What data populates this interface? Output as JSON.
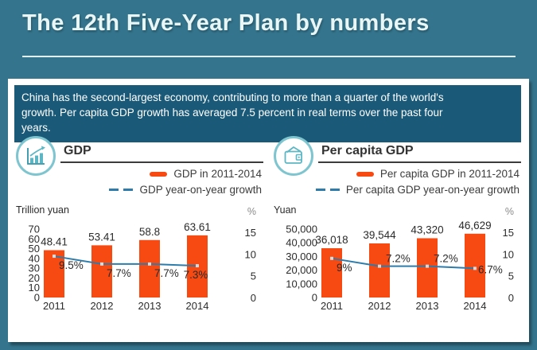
{
  "title": "The 12th Five-Year Plan by numbers",
  "intro": "China has the second-largest economy, contributing to more than a quarter of the world's growth. Per capita GDP growth has averaged 7.5 percent in real terms over the past four years.",
  "colors": {
    "background": "#34748c",
    "title_text": "#e9f6f6",
    "title_rule": "#e2eff1",
    "panel": "#ffffff",
    "intro_box": "#1a5a78",
    "bar": "#f64a12",
    "line": "#2d7cab",
    "marker": "#d9d9d9",
    "icon_circle": "#7fc5d0",
    "icon_glyph": "#5cb6c4",
    "rule_dark": "#3b3b3b",
    "text_dark": "#2b2b2b",
    "text_gray": "#8a8a8a"
  },
  "sections": [
    {
      "heading": "GDP",
      "icon": "growth-chart",
      "legend_bar": "GDP in 2011-2014",
      "legend_line": "GDP year-on-year growth"
    },
    {
      "heading": "Per capita GDP",
      "icon": "wallet",
      "legend_bar": "Per capita GDP in 2011-2014",
      "legend_line": "Per capita GDP year-on-year growth"
    }
  ],
  "chart_data": [
    {
      "type": "bar",
      "title": "GDP",
      "categories": [
        "2011",
        "2012",
        "2013",
        "2014"
      ],
      "series": [
        {
          "name": "GDP in 2011-2014",
          "type": "bar",
          "axis": "left",
          "values": [
            48.41,
            53.41,
            58.8,
            63.61
          ],
          "labels": [
            "48.41",
            "53.41",
            "58.8",
            "63.61"
          ]
        },
        {
          "name": "GDP year-on-year growth",
          "type": "line",
          "axis": "right",
          "values": [
            9.5,
            7.7,
            7.7,
            7.3
          ],
          "labels": [
            "9.5%",
            "7.7%",
            "7.7%",
            "7.3%"
          ],
          "label_placement": [
            "below-right",
            "below-right",
            "below-right",
            "below-center"
          ]
        }
      ],
      "left_axis": {
        "label": "Trillion yuan",
        "ticks": [
          "70",
          "60",
          "50",
          "40",
          "30",
          "20",
          "10",
          "0"
        ],
        "max": 70,
        "width": 30
      },
      "right_axis": {
        "label": "%",
        "ticks": [
          "15",
          "10",
          "5",
          "0"
        ],
        "max": 15
      },
      "grid": false,
      "legend_position": "top-right"
    },
    {
      "type": "bar",
      "title": "Per capita GDP",
      "categories": [
        "2011",
        "2012",
        "2013",
        "2014"
      ],
      "series": [
        {
          "name": "Per capita GDP in 2011-2014",
          "type": "bar",
          "axis": "left",
          "values": [
            36018,
            39544,
            43320,
            46629
          ],
          "labels": [
            "36,018",
            "39,544",
            "43,320",
            "46,629"
          ]
        },
        {
          "name": "Per capita GDP year-on-year growth",
          "type": "line",
          "axis": "right",
          "values": [
            9,
            7.2,
            7.2,
            6.7
          ],
          "labels": [
            "9%",
            "7.2%",
            "7.2%",
            "6.7%"
          ],
          "label_placement": [
            "below-right",
            "above-right",
            "above-right",
            "right"
          ]
        }
      ],
      "left_axis": {
        "label": "Yuan",
        "ticks": [
          "50,000",
          "40,000",
          "30,000",
          "20,000",
          "10,000",
          "0"
        ],
        "max": 50000,
        "width": 55
      },
      "right_axis": {
        "label": "%",
        "ticks": [
          "15",
          "10",
          "5",
          "0"
        ],
        "max": 15
      },
      "grid": false,
      "legend_position": "top-right"
    }
  ]
}
